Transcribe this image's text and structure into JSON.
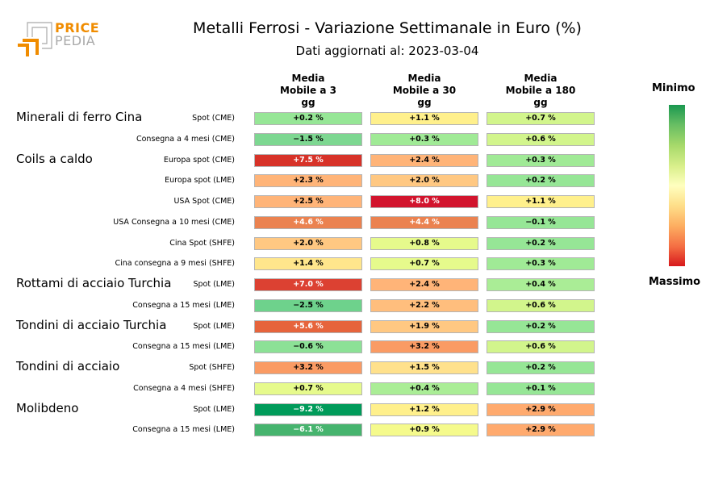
{
  "logo": {
    "word_line1": "PRICE",
    "word_line2": "PEDIA",
    "accent_color": "#f08c00",
    "muted_color": "#a9a9a9"
  },
  "title": "Metalli Ferrosi - Variazione Settimanale in Euro (%)",
  "subtitle": "Dati aggiornati al: 2023-03-04",
  "legend": {
    "min_label": "Minimo",
    "max_label": "Massimo"
  },
  "chart_data": {
    "type": "heatmap",
    "title": "Metalli Ferrosi - Variazione Settimanale in Euro (%)",
    "columns": [
      "Media\nMobile a 3\ngg",
      "Media\nMobile a 30\ngg",
      "Media\nMobile a 180\ngg"
    ],
    "groups": [
      "Minerali di ferro Cina",
      "Coils a caldo",
      "Rottami di acciaio Turchia",
      "Tondini di acciaio Turchia",
      "Tondini di acciaio",
      "Molibdeno"
    ],
    "rows": [
      {
        "group": "Minerali di ferro Cina",
        "label": "Spot (CME)",
        "values": [
          "+0.2 %",
          "+1.1 %",
          "+0.7 %"
        ],
        "colors": [
          "#96e696",
          "#fff08c",
          "#d2f58c"
        ]
      },
      {
        "group": "",
        "label": "Consegna a 4 mesi (CME)",
        "values": [
          "−1.5 %",
          "+0.3 %",
          "+0.6 %"
        ],
        "colors": [
          "#7dd791",
          "#a0ea96",
          "#d2f58c"
        ]
      },
      {
        "group": "Coils a caldo",
        "label": "Europa spot (CME)",
        "values": [
          "+7.5 %",
          "+2.4 %",
          "+0.3 %"
        ],
        "colors": [
          "#d73228",
          "#ffb478",
          "#a0ea96"
        ]
      },
      {
        "group": "",
        "label": "Europa spot (LME)",
        "values": [
          "+2.3 %",
          "+2.0 %",
          "+0.2 %"
        ],
        "colors": [
          "#ffb478",
          "#ffc882",
          "#96e696"
        ]
      },
      {
        "group": "",
        "label": "USA Spot (CME)",
        "values": [
          "+2.5 %",
          "+8.0 %",
          "+1.1 %"
        ],
        "colors": [
          "#ffb478",
          "#d2142d",
          "#fff08c"
        ]
      },
      {
        "group": "",
        "label": "USA Consegna a 10 mesi (CME)",
        "values": [
          "+4.6 %",
          "+4.4 %",
          "−0.1 %"
        ],
        "colors": [
          "#eb8250",
          "#eb8250",
          "#96e696"
        ]
      },
      {
        "group": "",
        "label": "Cina Spot (SHFE)",
        "values": [
          "+2.0 %",
          "+0.8 %",
          "+0.2 %"
        ],
        "colors": [
          "#ffc882",
          "#e6fa8c",
          "#96e696"
        ]
      },
      {
        "group": "",
        "label": "Cina consegna a 9 mesi (SHFE)",
        "values": [
          "+1.4 %",
          "+0.7 %",
          "+0.3 %"
        ],
        "colors": [
          "#ffe68c",
          "#e6fa8c",
          "#a0ea96"
        ]
      },
      {
        "group": "Rottami di acciaio Turchia",
        "label": "Spot (LME)",
        "values": [
          "+7.0 %",
          "+2.4 %",
          "+0.4 %"
        ],
        "colors": [
          "#dc4132",
          "#ffb478",
          "#aaed96"
        ]
      },
      {
        "group": "",
        "label": "Consegna a 15 mesi (LME)",
        "values": [
          "−2.5 %",
          "+2.2 %",
          "+0.6 %"
        ],
        "colors": [
          "#6ed28c",
          "#ffbe7d",
          "#d2f58c"
        ]
      },
      {
        "group": "Tondini di acciaio Turchia",
        "label": "Spot (LME)",
        "values": [
          "+5.6 %",
          "+1.9 %",
          "+0.2 %"
        ],
        "colors": [
          "#e6643c",
          "#ffc882",
          "#96e696"
        ]
      },
      {
        "group": "",
        "label": "Consegna a 15 mesi (LME)",
        "values": [
          "−0.6 %",
          "+3.2 %",
          "+0.6 %"
        ],
        "colors": [
          "#8ce196",
          "#fa9b64",
          "#d2f58c"
        ]
      },
      {
        "group": "Tondini di acciaio",
        "label": "Spot (SHFE)",
        "values": [
          "+3.2 %",
          "+1.5 %",
          "+0.2 %"
        ],
        "colors": [
          "#fa9b64",
          "#ffe18c",
          "#96e696"
        ]
      },
      {
        "group": "",
        "label": "Consegna a 4 mesi (SHFE)",
        "values": [
          "+0.7 %",
          "+0.4 %",
          "+0.1 %"
        ],
        "colors": [
          "#e6fa8c",
          "#aaed96",
          "#96e696"
        ]
      },
      {
        "group": "Molibdeno",
        "label": "Spot (LME)",
        "values": [
          "−9.2 %",
          "+1.2 %",
          "+2.9 %"
        ],
        "colors": [
          "#009b5a",
          "#fff08c",
          "#ffaa6e"
        ]
      },
      {
        "group": "",
        "label": "Consegna a 15 mesi (LME)",
        "values": [
          "−6.1 %",
          "+0.9 %",
          "+2.9 %"
        ],
        "colors": [
          "#46b46e",
          "#f5fa8c",
          "#ffaa6e"
        ]
      }
    ]
  }
}
